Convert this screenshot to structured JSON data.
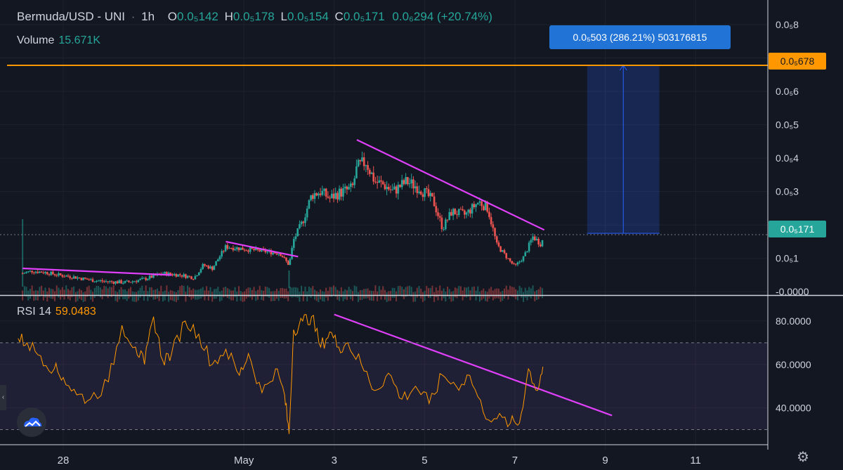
{
  "header": {
    "symbol": "Bermuda/USD - UNI",
    "interval": "1h",
    "o_key": "O",
    "o_val": "0.0₅142",
    "h_key": "H",
    "h_val": "0.0₅178",
    "l_key": "L",
    "l_val": "0.0₅154",
    "c_key": "C",
    "c_val": "0.0₅171",
    "change": "0.0₆294 (+20.74%)"
  },
  "volume": {
    "label": "Volume",
    "value": "15.671K"
  },
  "rsi": {
    "label": "RSI 14",
    "value": "59.0483"
  },
  "measure_tooltip": "0.0₅503 (286.21%) 503176815",
  "price_labels": {
    "target": "0.0₅678",
    "last": "0.0₅171"
  },
  "colors": {
    "up": "#26a69a",
    "down": "#ef5350",
    "trend": "#e040fb",
    "rsi": "#ff9800",
    "target": "#ff9800",
    "measure": "#2962ff"
  },
  "icons": {
    "settings": "gear-icon",
    "logo": "cloud-logo-icon"
  },
  "chart_data": [
    {
      "type": "candlestick",
      "price_unit": "1e-5 USD",
      "y_ticks": [
        "0.0₅8",
        "0.0₅7",
        "0.0₅6",
        "0.0₅5",
        "0.0₅4",
        "0.0₅3",
        "0.0₅2",
        "0.0₅1",
        "-0.0000"
      ],
      "y_tick_values": [
        8,
        7,
        6,
        5,
        4,
        3,
        2,
        1,
        0
      ],
      "ylim": [
        -0.1,
        8.4
      ],
      "x_ticks": [
        "28",
        "May",
        "3",
        "5",
        "7",
        "9",
        "11"
      ],
      "x_tick_days": [
        28,
        32,
        34,
        36,
        38,
        40,
        42
      ],
      "xlim": [
        26.6,
        43.6
      ],
      "first_candle_day": 27.1,
      "candle_days_step": 0.042,
      "close_path": [
        [
          27.1,
          0.55
        ],
        [
          27.3,
          0.62
        ],
        [
          27.6,
          0.58
        ],
        [
          27.9,
          0.5
        ],
        [
          28.2,
          0.45
        ],
        [
          28.6,
          0.35
        ],
        [
          29.0,
          0.3
        ],
        [
          29.4,
          0.28
        ],
        [
          29.8,
          0.38
        ],
        [
          30.2,
          0.55
        ],
        [
          30.6,
          0.5
        ],
        [
          30.9,
          0.42
        ],
        [
          31.1,
          0.8
        ],
        [
          31.3,
          0.7
        ],
        [
          31.6,
          1.35
        ],
        [
          31.9,
          1.3
        ],
        [
          32.2,
          1.25
        ],
        [
          32.5,
          1.2
        ],
        [
          32.8,
          1.15
        ],
        [
          33.0,
          0.8
        ],
        [
          33.1,
          1.55
        ],
        [
          33.3,
          2.1
        ],
        [
          33.5,
          2.9
        ],
        [
          33.7,
          3.0
        ],
        [
          33.9,
          2.8
        ],
        [
          34.1,
          2.95
        ],
        [
          34.4,
          3.1
        ],
        [
          34.5,
          3.7
        ],
        [
          34.7,
          3.9
        ],
        [
          34.9,
          3.3
        ],
        [
          35.1,
          3.2
        ],
        [
          35.3,
          3.0
        ],
        [
          35.6,
          3.3
        ],
        [
          35.9,
          3.1
        ],
        [
          36.2,
          2.7
        ],
        [
          36.4,
          1.9
        ],
        [
          36.6,
          2.4
        ],
        [
          36.9,
          2.3
        ],
        [
          37.2,
          2.7
        ],
        [
          37.4,
          2.5
        ],
        [
          37.6,
          1.4
        ],
        [
          37.9,
          0.9
        ],
        [
          38.0,
          0.75
        ],
        [
          38.2,
          1.05
        ],
        [
          38.4,
          1.65
        ],
        [
          38.6,
          1.4
        ],
        [
          38.62,
          1.71
        ]
      ],
      "trendlines": [
        {
          "from": [
            27.1,
            0.7
          ],
          "to": [
            30.4,
            0.5
          ]
        },
        {
          "from": [
            31.6,
            1.5
          ],
          "to": [
            33.2,
            1.05
          ]
        },
        {
          "from": [
            34.5,
            4.55
          ],
          "to": [
            38.65,
            1.85
          ]
        }
      ],
      "target_price": 6.78,
      "last_price": 1.71,
      "measure_box": {
        "x0": 39.6,
        "x1": 41.2,
        "y0": 1.75,
        "y1": 6.78
      }
    },
    {
      "type": "line",
      "title": "RSI 14",
      "y_ticks": [
        "80.0000",
        "60.0000",
        "40.0000"
      ],
      "y_tick_values": [
        80,
        60,
        40
      ],
      "ylim": [
        25,
        90
      ],
      "band": [
        30,
        70
      ],
      "x": [
        27.0,
        27.2,
        27.5,
        27.8,
        28.0,
        28.3,
        28.6,
        29.0,
        29.3,
        29.6,
        29.8,
        30.0,
        30.2,
        30.4,
        30.7,
        31.0,
        31.3,
        31.6,
        31.9,
        32.1,
        32.4,
        32.7,
        32.9,
        33.0,
        33.1,
        33.3,
        33.5,
        33.7,
        33.9,
        34.1,
        34.3,
        34.6,
        34.9,
        35.2,
        35.5,
        35.8,
        36.1,
        36.4,
        36.7,
        37.0,
        37.3,
        37.6,
        37.9,
        38.1,
        38.3,
        38.5,
        38.62
      ],
      "values": [
        72,
        70,
        64,
        58,
        54,
        46,
        44,
        52,
        78,
        68,
        60,
        82,
        62,
        65,
        80,
        74,
        60,
        67,
        55,
        65,
        47,
        58,
        46,
        28,
        76,
        80,
        82,
        68,
        75,
        68,
        70,
        60,
        48,
        56,
        44,
        50,
        42,
        55,
        50,
        55,
        38,
        35,
        33,
        33,
        58,
        48,
        59
      ]
    }
  ]
}
